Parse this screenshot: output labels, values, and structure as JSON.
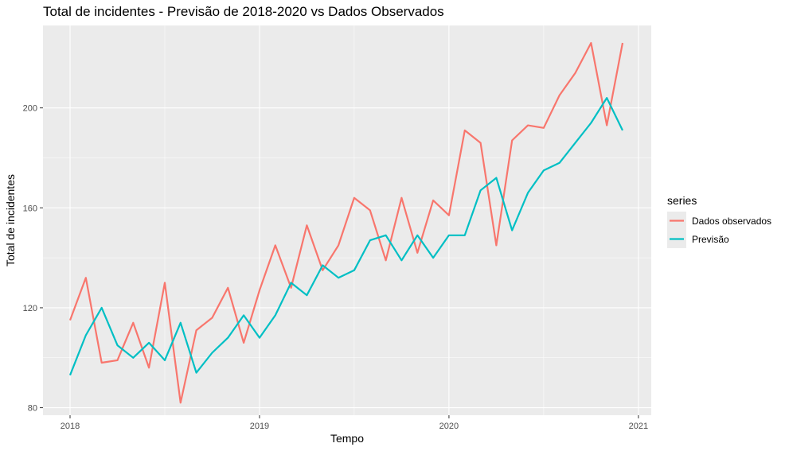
{
  "chart_data": {
    "type": "line",
    "title": "Total de incidentes - Previsão de 2018-2020 vs Dados Observados",
    "xlabel": "Tempo",
    "ylabel": "Total de incidentes",
    "x": [
      "2018-01",
      "2018-02",
      "2018-03",
      "2018-04",
      "2018-05",
      "2018-06",
      "2018-07",
      "2018-08",
      "2018-09",
      "2018-10",
      "2018-11",
      "2018-12",
      "2019-01",
      "2019-02",
      "2019-03",
      "2019-04",
      "2019-05",
      "2019-06",
      "2019-07",
      "2019-08",
      "2019-09",
      "2019-10",
      "2019-11",
      "2019-12",
      "2020-01",
      "2020-02",
      "2020-03",
      "2020-04",
      "2020-05",
      "2020-06",
      "2020-07",
      "2020-08",
      "2020-09",
      "2020-10",
      "2020-11",
      "2020-12"
    ],
    "x_ticks": [
      "2018",
      "2019",
      "2020",
      "2021"
    ],
    "y_ticks": [
      80,
      120,
      160,
      200
    ],
    "ylim": [
      77,
      233
    ],
    "legend_title": "series",
    "legend_position": "right",
    "grid": true,
    "series": [
      {
        "name": "Dados observados",
        "color": "#F8766D",
        "values": [
          115,
          132,
          98,
          99,
          114,
          96,
          130,
          82,
          111,
          116,
          128,
          106,
          127,
          145,
          128,
          153,
          135,
          145,
          164,
          159,
          139,
          164,
          142,
          163,
          157,
          191,
          186,
          145,
          187,
          193,
          192,
          205,
          214,
          226,
          193,
          226
        ]
      },
      {
        "name": "Previsão",
        "color": "#00BFC4",
        "values": [
          93,
          109,
          120,
          105,
          100,
          106,
          99,
          114,
          94,
          102,
          108,
          117,
          108,
          117,
          130,
          125,
          137,
          132,
          135,
          147,
          149,
          139,
          149,
          140,
          149,
          149,
          167,
          172,
          151,
          166,
          175,
          178,
          186,
          194,
          204,
          191
        ]
      }
    ]
  }
}
